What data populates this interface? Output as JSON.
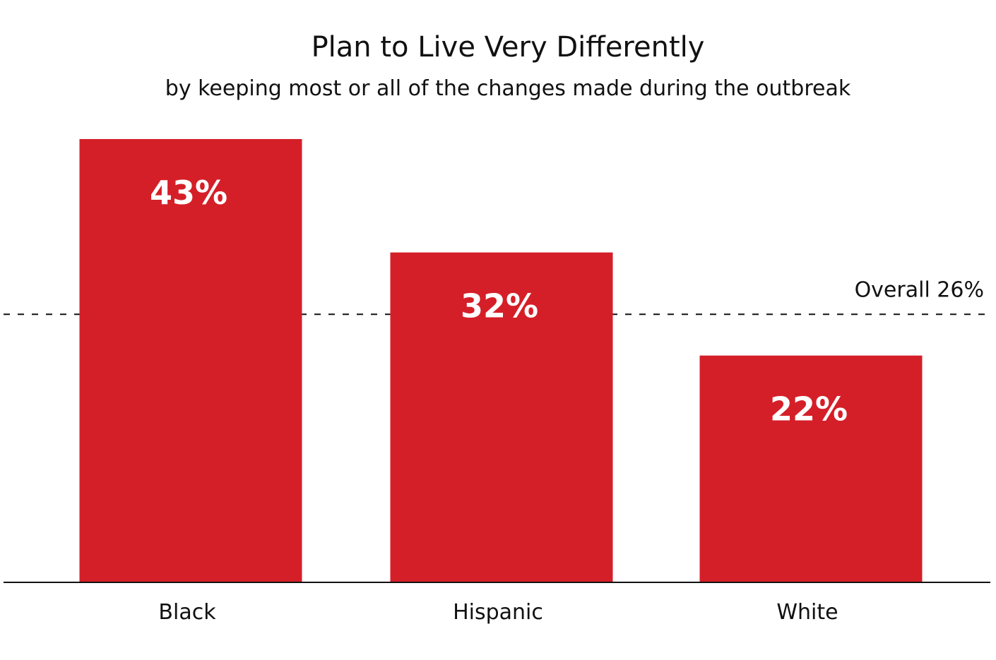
{
  "chart_data": {
    "type": "bar",
    "title": "Plan to Live Very Differently",
    "subtitle": "by keeping most or all of the changes made during the outbreak",
    "categories": [
      "Black",
      "Hispanic",
      "White"
    ],
    "values": [
      43,
      32,
      22
    ],
    "value_labels": [
      "43%",
      "32%",
      "22%"
    ],
    "unit": "%",
    "ylim": [
      0,
      43
    ],
    "grid": false,
    "legend": "none",
    "bar_color": "#d51f28",
    "value_label_color": "#ffffff",
    "reference_line": {
      "value": 26,
      "label": "Overall 26%",
      "style": "dashed"
    }
  }
}
